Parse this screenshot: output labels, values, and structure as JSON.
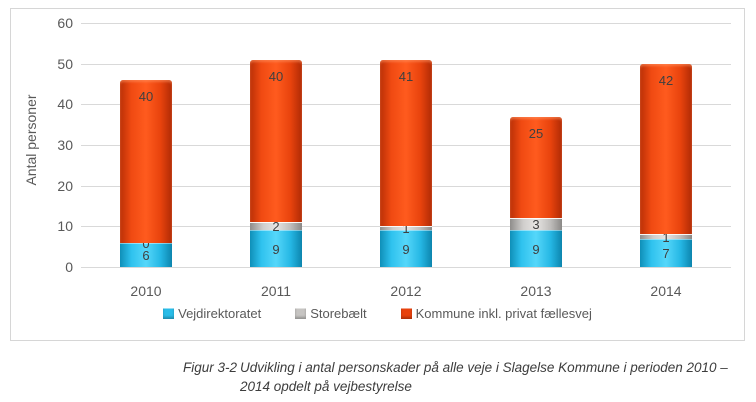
{
  "chart_data": {
    "type": "bar",
    "stacked": true,
    "title": "",
    "categories": [
      "2010",
      "2011",
      "2012",
      "2013",
      "2014"
    ],
    "series": [
      {
        "name": "Vejdirektoratet",
        "color": "#29bce8",
        "values": [
          6,
          9,
          9,
          9,
          7
        ]
      },
      {
        "name": "Storebælt",
        "color": "#c6c4c2",
        "values": [
          0,
          2,
          1,
          3,
          1
        ]
      },
      {
        "name": "Kommune inkl. privat fællesvej",
        "color": "#e8420d",
        "values": [
          40,
          40,
          41,
          25,
          42
        ]
      }
    ],
    "totals": [
      46,
      51,
      51,
      37,
      50
    ],
    "xlabel": "",
    "ylabel": "Antal personer",
    "ylim": [
      0,
      60
    ],
    "ytick_step": 10,
    "grid": true,
    "legend_position": "bottom",
    "value_labels": true
  },
  "caption": {
    "label": "Figur 3-2",
    "text": "Udvikling i antal personskader på alle veje i Slagelse Kommune i perioden 2010 – 2014 opdelt på vejbestyrelse"
  }
}
